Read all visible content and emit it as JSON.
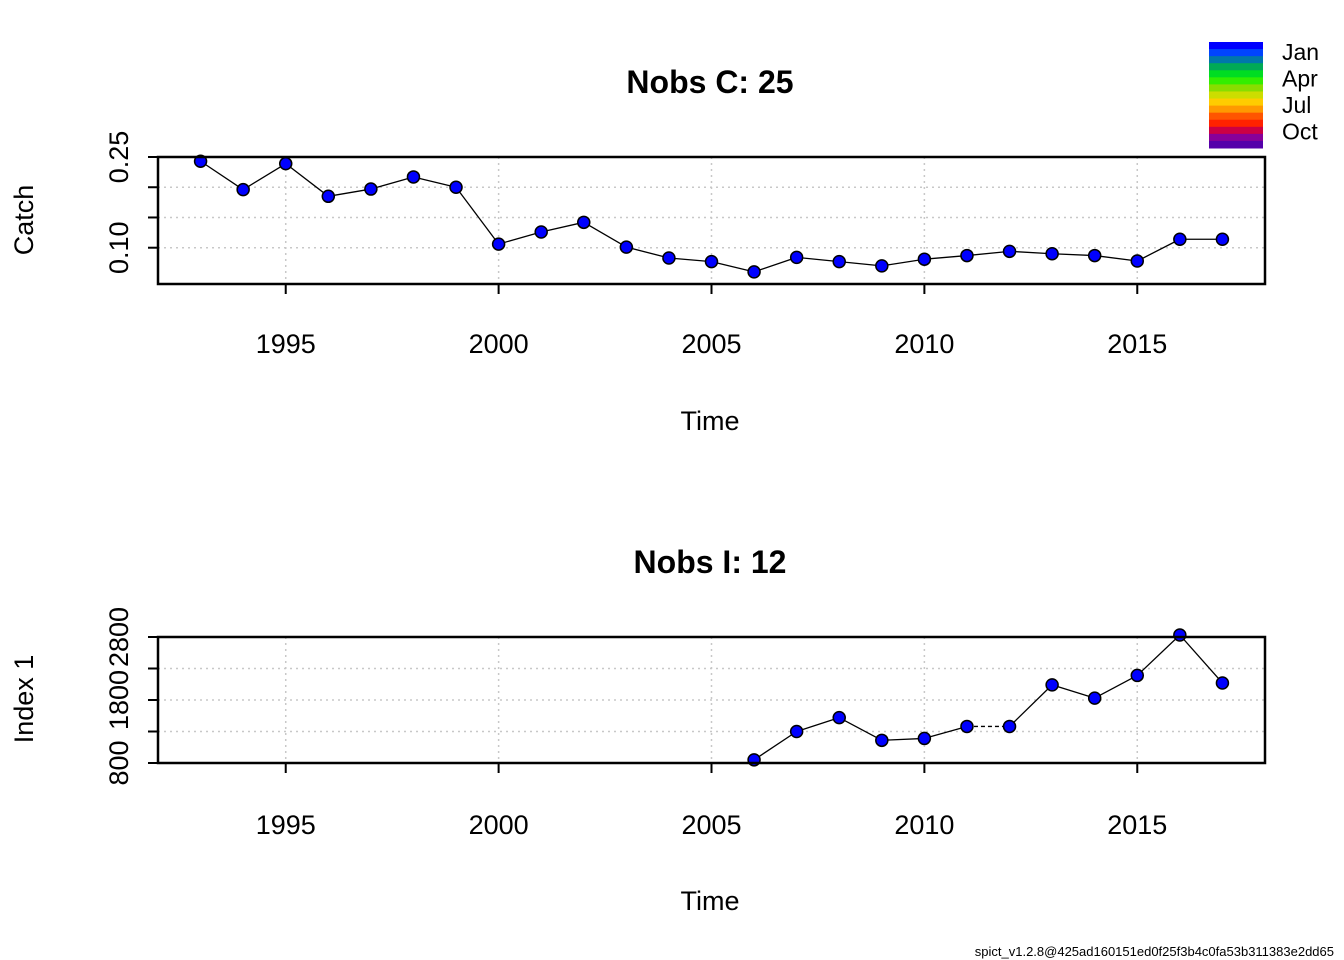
{
  "chart_data": [
    {
      "type": "line",
      "title": "Nobs C: 25",
      "xlabel": "Time",
      "ylabel": "Catch",
      "x_ticks": [
        1995,
        2000,
        2005,
        2010,
        2015
      ],
      "y_ticks": [
        0.1,
        0.15,
        0.2,
        0.25
      ],
      "y_tick_labels": [
        "0.10",
        "",
        "",
        "0.25"
      ],
      "grid": true,
      "xlim": [
        1992.0,
        2018.0
      ],
      "ylim": [
        0.04,
        0.25
      ],
      "series": [
        {
          "x": [
            1993,
            1994,
            1995,
            1996,
            1997,
            1998,
            1999,
            2000,
            2001,
            2002,
            2003,
            2004,
            2005,
            2006,
            2007,
            2008,
            2009,
            2010,
            2011,
            2012,
            2013,
            2014,
            2015,
            2016,
            2017
          ],
          "values": [
            0.243,
            0.196,
            0.239,
            0.185,
            0.197,
            0.217,
            0.2,
            0.106,
            0.126,
            0.142,
            0.101,
            0.083,
            0.077,
            0.06,
            0.084,
            0.077,
            0.07,
            0.081,
            0.087,
            0.094,
            0.09,
            0.087,
            0.078,
            0.114,
            0.114
          ]
        }
      ]
    },
    {
      "type": "line",
      "title": "Nobs I: 12",
      "xlabel": "Time",
      "ylabel": "Index 1",
      "x_ticks": [
        1995,
        2000,
        2005,
        2010,
        2015
      ],
      "y_ticks": [
        800,
        1300,
        1800,
        2300,
        2800
      ],
      "y_tick_labels": [
        "800",
        "",
        "1800",
        "",
        "2800"
      ],
      "grid": true,
      "xlim": [
        1992.0,
        2018.0
      ],
      "ylim": [
        800,
        2800
      ],
      "series": [
        {
          "x": [
            2006,
            2007,
            2008,
            2009,
            2010,
            2011,
            2012,
            2013,
            2014,
            2015,
            2016,
            2017
          ],
          "values": [
            850,
            1300,
            1520,
            1160,
            1190,
            1380,
            1380,
            2040,
            1830,
            2190,
            2960,
            2070
          ],
          "dashed_segment": [
            2011,
            2012
          ]
        }
      ]
    }
  ],
  "legend": {
    "labels": [
      "Jan",
      "Apr",
      "Jul",
      "Oct"
    ],
    "colors": [
      "#0000FF",
      "#0044FF",
      "#0077AA",
      "#00AA55",
      "#00DD22",
      "#33EE00",
      "#88DD00",
      "#CCDD00",
      "#FFCC00",
      "#FF9900",
      "#FF5500",
      "#FF2200",
      "#CC0044",
      "#880099",
      "#5500AA"
    ]
  },
  "point_color": "#0000FF",
  "footer": "spict_v1.2.8@425ad160151ed0f25f3b4c0fa53b311383e2dd65"
}
